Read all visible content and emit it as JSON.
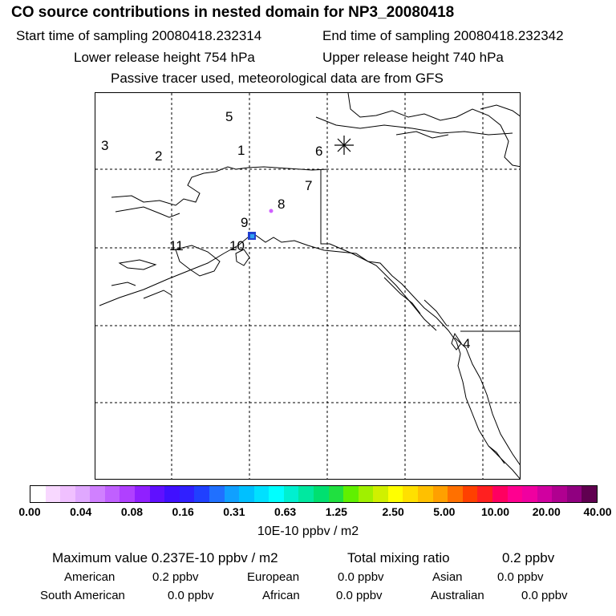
{
  "header": {
    "title": "CO  source contributions in nested domain for NP3_20080418",
    "start_sampling": "Start time of sampling 20080418.232314",
    "end_sampling": "End time of sampling 20080418.232342",
    "lower_release": "Lower release height  754 hPa",
    "upper_release": "Upper release height  740 hPa",
    "tracer_note": "Passive tracer used, meteorological data are from GFS"
  },
  "map": {
    "region_labels": [
      "1",
      "2",
      "3",
      "4",
      "5",
      "6",
      "7",
      "8",
      "9",
      "10",
      "11"
    ],
    "receptor_marker": "asterisk",
    "colors": {
      "blob_core": "#2040d0",
      "blob_edge": "#30a0f0",
      "plume": "#d060ff"
    }
  },
  "colorbar": {
    "colors": [
      "#ffffff",
      "#f8d8ff",
      "#f0c0ff",
      "#e0a8ff",
      "#d080ff",
      "#c060ff",
      "#b040ff",
      "#9020ff",
      "#6010ff",
      "#4010ff",
      "#3020ff",
      "#2040ff",
      "#2070ff",
      "#10a0ff",
      "#00c0ff",
      "#00e0ff",
      "#00ffff",
      "#00f0d0",
      "#00e8a0",
      "#00e070",
      "#20e040",
      "#60f000",
      "#a0f000",
      "#d0f000",
      "#ffff00",
      "#ffe000",
      "#ffc000",
      "#ffa000",
      "#ff7000",
      "#ff4000",
      "#ff2020",
      "#ff0060",
      "#ff0090",
      "#f000a0",
      "#d000a0",
      "#b00090",
      "#900080",
      "#600050"
    ],
    "tick_labels": [
      "0.00",
      "0.04",
      "0.08",
      "0.16",
      "0.31",
      "0.63",
      "1.25",
      "2.50",
      "5.00",
      "10.00",
      "20.00",
      "40.00"
    ],
    "units": "10E-10 ppbv / m2"
  },
  "stats": {
    "max_label": "Maximum value  0.237E-10 ppbv / m2",
    "total_label": "Total mixing ratio",
    "total_value": "0.2 ppbv",
    "american_label": "American",
    "american_value": "0.2 ppbv",
    "european_label": "European",
    "european_value": "0.0 ppbv",
    "asian_label": "Asian",
    "asian_value": "0.0 ppbv",
    "south_american_label": "South American",
    "south_american_value": "0.0 ppbv",
    "african_label": "African",
    "african_value": "0.0 ppbv",
    "australian_label": "Australian",
    "australian_value": "0.0 ppbv"
  }
}
